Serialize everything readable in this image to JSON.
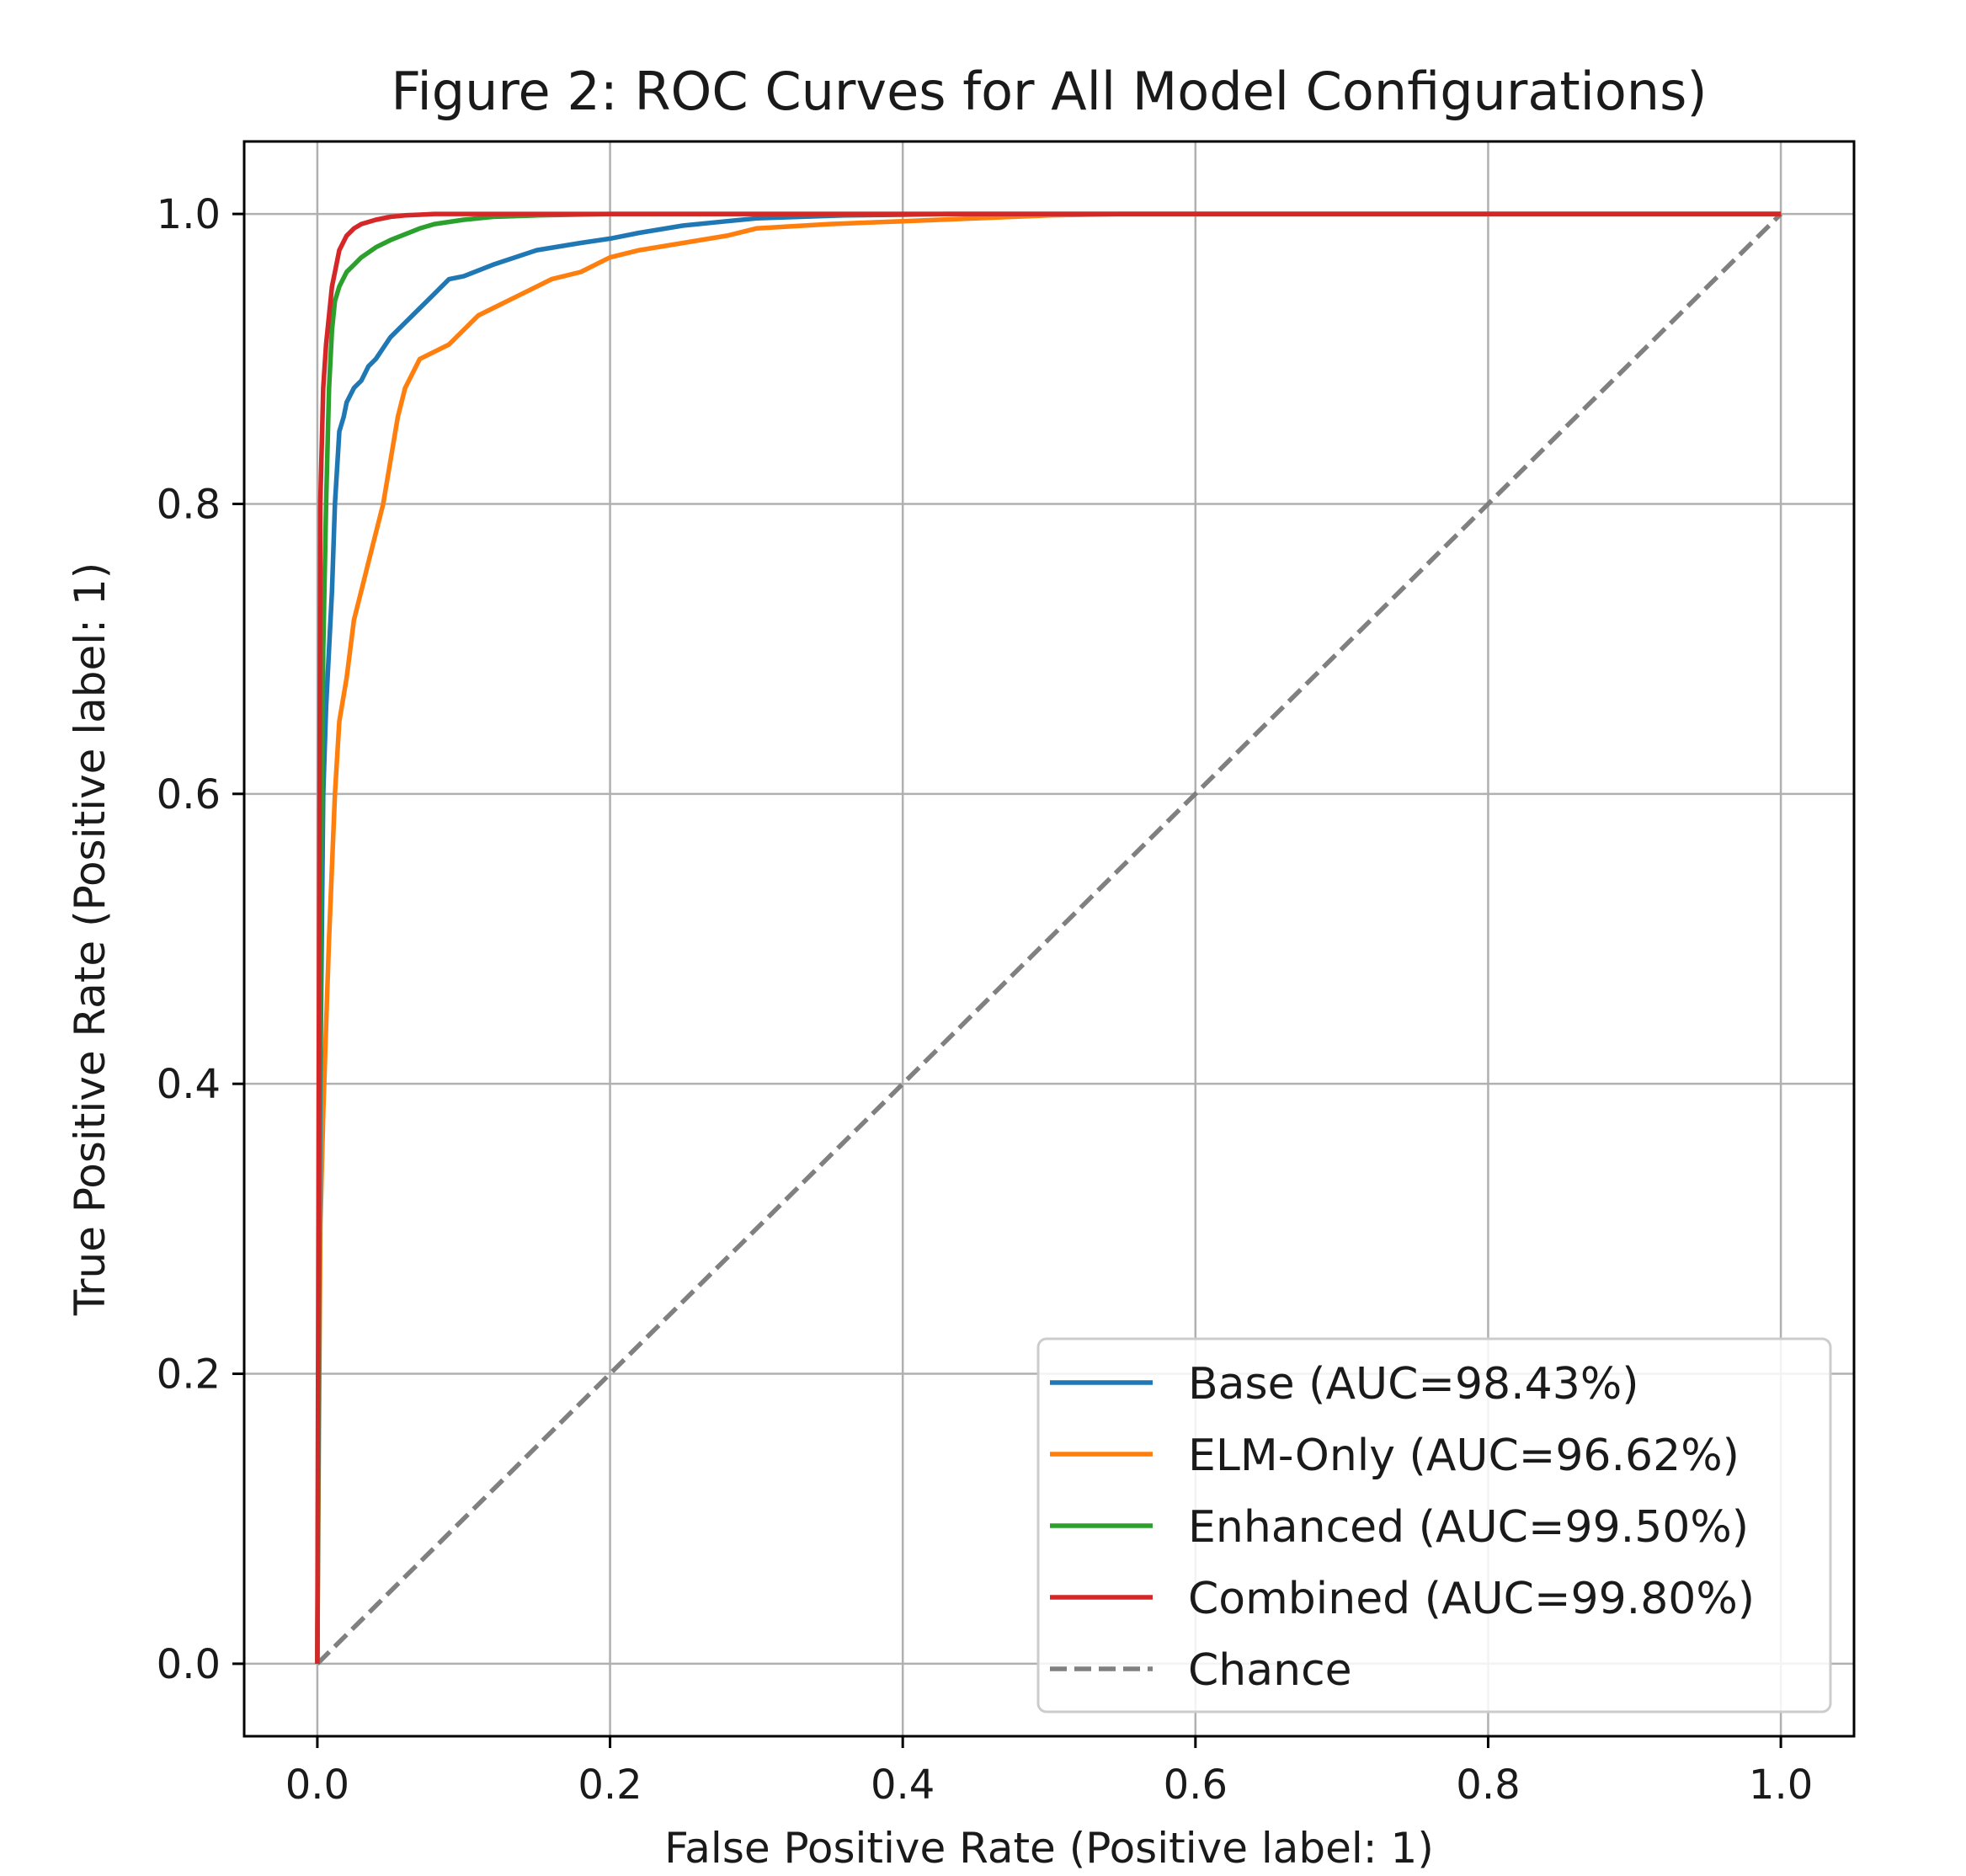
{
  "chart_data": {
    "type": "line",
    "title": "Figure 2: ROC Curves for All Model Configurations)",
    "xlabel": "False Positive Rate (Positive label: 1)",
    "ylabel": "True Positive Rate (Positive label: 1)",
    "xlim": [
      -0.05,
      1.05
    ],
    "ylim": [
      -0.05,
      1.05
    ],
    "xticks": [
      0.0,
      0.2,
      0.4,
      0.6,
      0.8,
      1.0
    ],
    "yticks": [
      0.0,
      0.2,
      0.4,
      0.6,
      0.8,
      1.0
    ],
    "xtick_labels": [
      "0.0",
      "0.2",
      "0.4",
      "0.6",
      "0.8",
      "1.0"
    ],
    "ytick_labels": [
      "0.0",
      "0.2",
      "0.4",
      "0.6",
      "0.8",
      "1.0"
    ],
    "grid": true,
    "legend_position": "bottom-right",
    "series": [
      {
        "name": "Base (AUC=98.43%)",
        "color": "#1f77b4",
        "dash": "solid",
        "x": [
          0.0,
          0.002,
          0.004,
          0.006,
          0.008,
          0.01,
          0.012,
          0.015,
          0.018,
          0.02,
          0.025,
          0.03,
          0.035,
          0.04,
          0.05,
          0.06,
          0.07,
          0.08,
          0.09,
          0.1,
          0.12,
          0.15,
          0.18,
          0.2,
          0.22,
          0.25,
          0.28,
          0.3,
          0.33,
          0.36,
          0.4,
          0.43,
          1.0
        ],
        "y": [
          0.0,
          0.4,
          0.6,
          0.66,
          0.7,
          0.74,
          0.8,
          0.85,
          0.86,
          0.87,
          0.88,
          0.885,
          0.895,
          0.9,
          0.915,
          0.925,
          0.935,
          0.945,
          0.955,
          0.957,
          0.965,
          0.975,
          0.98,
          0.983,
          0.987,
          0.992,
          0.995,
          0.997,
          0.998,
          0.999,
          0.9995,
          1.0,
          1.0
        ]
      },
      {
        "name": "ELM-Only (AUC=96.62%)",
        "color": "#ff7f0e",
        "dash": "solid",
        "x": [
          0.0,
          0.002,
          0.004,
          0.006,
          0.008,
          0.01,
          0.012,
          0.015,
          0.02,
          0.025,
          0.03,
          0.035,
          0.04,
          0.045,
          0.05,
          0.055,
          0.06,
          0.065,
          0.07,
          0.08,
          0.09,
          0.1,
          0.11,
          0.12,
          0.14,
          0.16,
          0.18,
          0.2,
          0.22,
          0.25,
          0.28,
          0.3,
          0.35,
          0.4,
          0.45,
          0.5,
          0.55,
          1.0
        ],
        "y": [
          0.0,
          0.3,
          0.38,
          0.44,
          0.5,
          0.55,
          0.6,
          0.65,
          0.68,
          0.72,
          0.74,
          0.76,
          0.78,
          0.8,
          0.83,
          0.86,
          0.88,
          0.89,
          0.9,
          0.905,
          0.91,
          0.92,
          0.93,
          0.935,
          0.945,
          0.955,
          0.96,
          0.97,
          0.975,
          0.98,
          0.985,
          0.99,
          0.993,
          0.995,
          0.997,
          0.999,
          1.0,
          1.0
        ]
      },
      {
        "name": "Enhanced (AUC=99.50%)",
        "color": "#2ca02c",
        "dash": "solid",
        "x": [
          0.0,
          0.002,
          0.004,
          0.006,
          0.008,
          0.01,
          0.012,
          0.015,
          0.02,
          0.025,
          0.03,
          0.04,
          0.05,
          0.06,
          0.07,
          0.08,
          0.1,
          0.12,
          0.15,
          0.2,
          1.0
        ],
        "y": [
          0.0,
          0.5,
          0.7,
          0.8,
          0.88,
          0.92,
          0.94,
          0.95,
          0.96,
          0.965,
          0.97,
          0.977,
          0.982,
          0.986,
          0.99,
          0.993,
          0.996,
          0.998,
          0.999,
          1.0,
          1.0
        ]
      },
      {
        "name": "Combined (AUC=99.80%)",
        "color": "#d62728",
        "dash": "solid",
        "x": [
          0.0,
          0.002,
          0.004,
          0.006,
          0.008,
          0.01,
          0.012,
          0.015,
          0.02,
          0.025,
          0.03,
          0.04,
          0.05,
          0.06,
          0.07,
          0.08,
          0.1,
          1.0
        ],
        "y": [
          0.0,
          0.8,
          0.88,
          0.91,
          0.93,
          0.95,
          0.96,
          0.975,
          0.985,
          0.99,
          0.993,
          0.996,
          0.998,
          0.999,
          0.9995,
          1.0,
          1.0,
          1.0
        ]
      },
      {
        "name": "Chance",
        "color": "#808080",
        "dash": "dashed",
        "x": [
          0.0,
          1.0
        ],
        "y": [
          0.0,
          1.0
        ]
      }
    ]
  }
}
